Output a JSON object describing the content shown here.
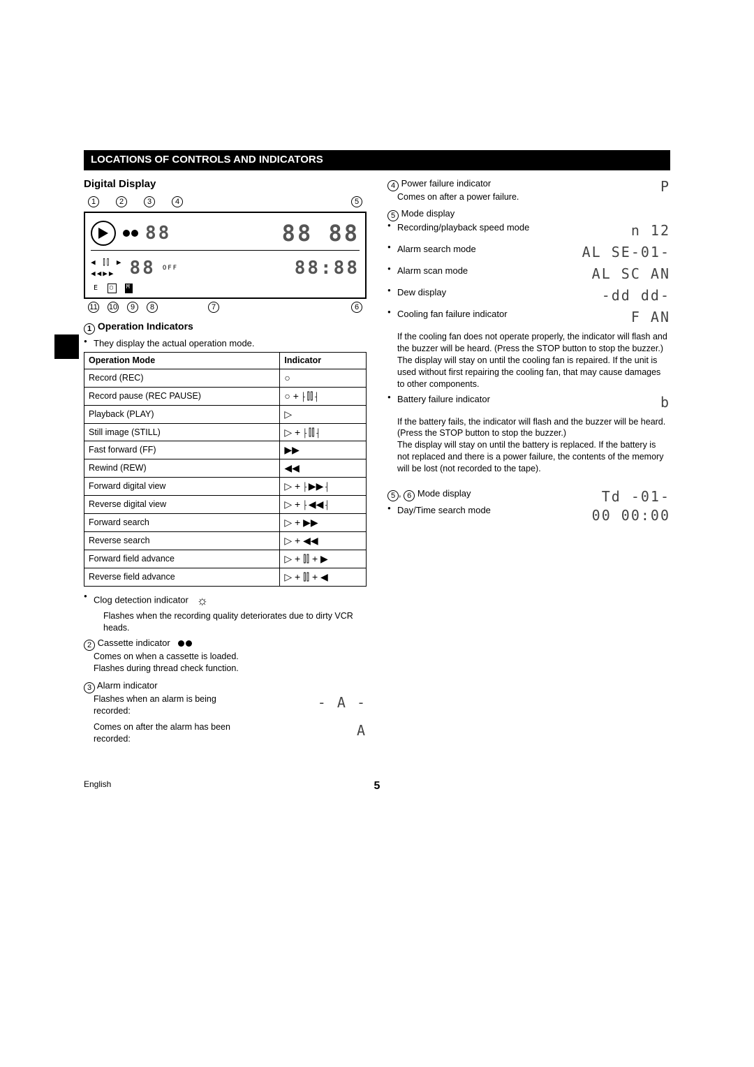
{
  "section_title": "LOCATIONS OF CONTROLS AND INDICATORS",
  "h_digital_display": "Digital Display",
  "ref_top": [
    "1",
    "2",
    "3",
    "4",
    "5"
  ],
  "ref_bot": [
    "11",
    "10",
    "9",
    "8",
    "7",
    "6"
  ],
  "diag_seg_alarm": "88",
  "diag_seg_time1": "88 88",
  "diag_seg_date": "88",
  "diag_off": "OFF",
  "diag_seg_clock": "88:88",
  "diag_e": "E",
  "diag_m": "M",
  "h_op_indicators": "Operation Indicators",
  "op_ref": "1",
  "op_intro": "They display the actual operation mode.",
  "tbl_h1": "Operation Mode",
  "tbl_h2": "Indicator",
  "tbl_rows": [
    [
      "Record (REC)",
      "○"
    ],
    [
      "Record pause (REC PAUSE)",
      "○ + ⸠⫿⫿⸡"
    ],
    [
      "Playback (PLAY)",
      "▷"
    ],
    [
      "Still image (STILL)",
      "▷ + ⸠⫿⫿⸡"
    ],
    [
      "Fast forward (FF)",
      "▶▶"
    ],
    [
      "Rewind (REW)",
      "◀◀"
    ],
    [
      "Forward digital view",
      "▷ + ⸠▶▶⸡"
    ],
    [
      "Reverse digital view",
      "▷ + ⸠◀◀⸡"
    ],
    [
      "Forward search",
      "▷ + ▶▶"
    ],
    [
      "Reverse search",
      "▷ + ◀◀"
    ],
    [
      "Forward field advance",
      "▷ + ⫿⫿ + ▶"
    ],
    [
      "Reverse field advance",
      "▷ + ⫿⫿ + ◀"
    ]
  ],
  "clog_label": "Clog detection indicator",
  "clog_icon": "☼",
  "clog_text": "Flashes when the recording quality deteriorates due to dirty VCR heads.",
  "cass_ref": "2",
  "cass_label": "Cassette indicator",
  "cass_l1": "Comes on when a cassette is loaded.",
  "cass_l2": "Flashes during thread check function.",
  "alarm_ref": "3",
  "alarm_label": "Alarm indicator",
  "alarm_l1": "Flashes when an alarm is being recorded:",
  "alarm_disp1": "- A -",
  "alarm_l2": "Comes on after the alarm has been recorded:",
  "alarm_disp2": "A",
  "pf_ref": "4",
  "pf_label": "Power failure indicator",
  "pf_icon": "P",
  "pf_text": "Comes on after a power failure.",
  "mode_ref": "5",
  "mode_label": "Mode display",
  "mode_rec_l": "Recording/playback speed mode",
  "mode_rec_d": "n  12",
  "mode_alsearch_l": "Alarm search mode",
  "mode_alsearch_d": "AL  SE-01-",
  "mode_alscan_l": "Alarm scan mode",
  "mode_alscan_d": "AL  SC AN",
  "mode_dew_l": "Dew display",
  "mode_dew_d": "-dd dd-",
  "fan_l": "Cooling fan failure indicator",
  "fan_d": "F AN",
  "fan_text": "If the cooling fan does not operate properly, the indicator will flash and the buzzer will be heard. (Press the STOP button to stop the buzzer.) The display will stay on until the cooling fan is repaired. If the unit is used without first repairing the cooling fan, that may cause damages to other components.",
  "batt_l": "Battery failure indicator",
  "batt_d": "b",
  "batt_text1": "If the battery fails, the indicator will flash and the buzzer will be heard. (Press the STOP button to stop the buzzer.)",
  "batt_text2": "The display will stay on until the battery is replaced. If the battery is not replaced and there is a power failure, the contents of the memory will be lost (not recorded to the tape).",
  "mode56_ref1": "5",
  "mode56_ref2": "6",
  "mode56_label": "Mode display",
  "mode56_l": "Day/Time search mode",
  "mode56_d1": "Td   -01-",
  "mode56_d2": "00  00:00",
  "footer_lang": "English",
  "page_num": "5"
}
